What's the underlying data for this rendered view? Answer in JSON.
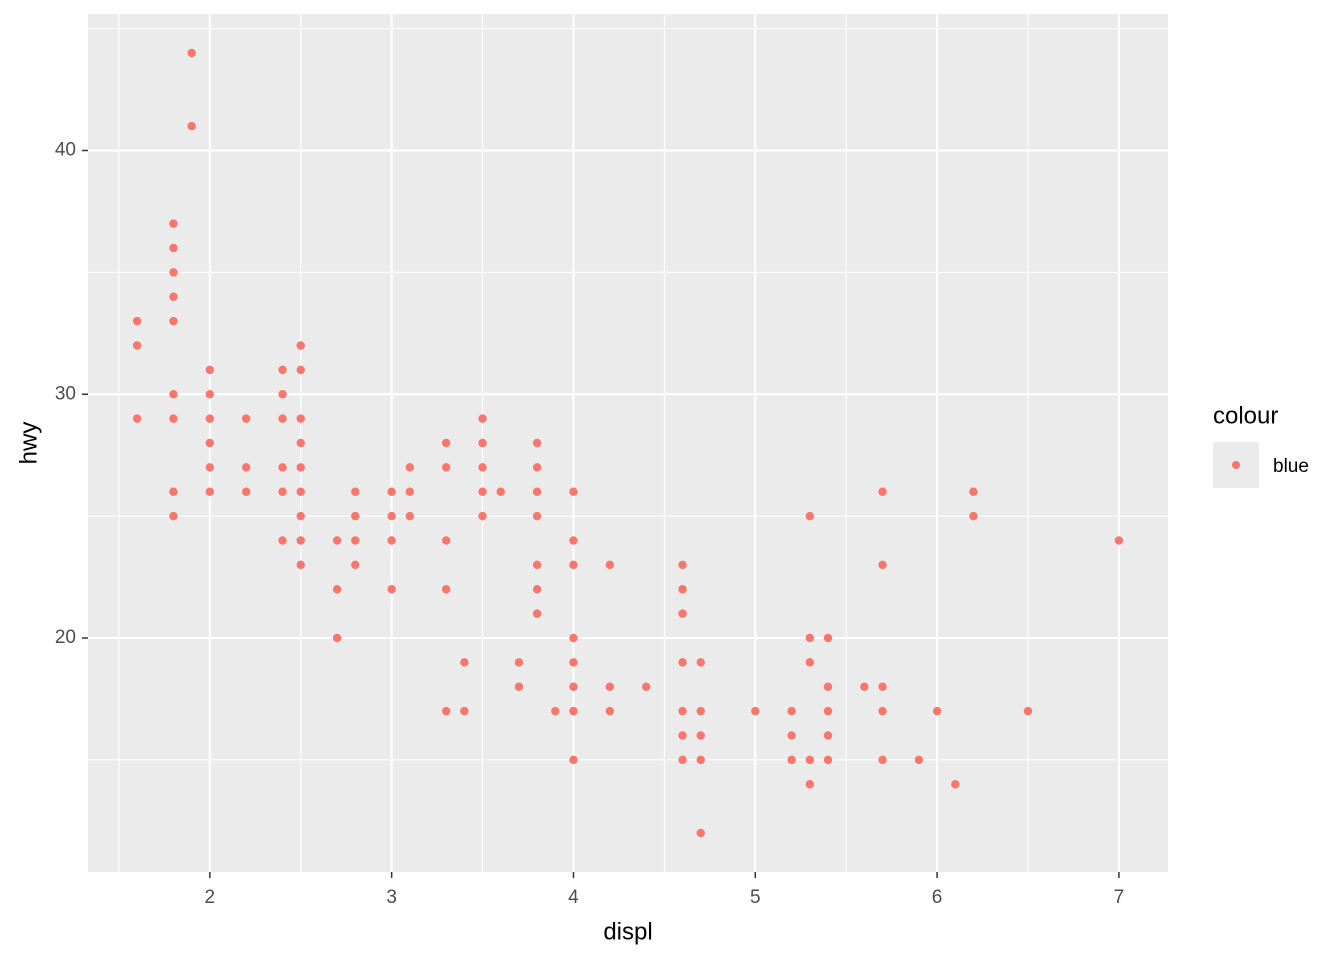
{
  "chart_data": {
    "type": "scatter",
    "x_label": "displ",
    "y_label": "hwy",
    "legend_title": "colour",
    "series": [
      {
        "name": "blue",
        "color": "#F8766D",
        "x": [
          1.6,
          1.6,
          1.6,
          1.8,
          1.8,
          1.8,
          1.8,
          1.8,
          1.8,
          1.8,
          1.8,
          1.8,
          1.9,
          1.9,
          2.0,
          2.0,
          2.0,
          2.0,
          2.0,
          2.0,
          2.2,
          2.2,
          2.2,
          2.4,
          2.4,
          2.4,
          2.4,
          2.4,
          2.4,
          2.5,
          2.5,
          2.5,
          2.5,
          2.5,
          2.5,
          2.5,
          2.5,
          2.5,
          2.7,
          2.7,
          2.7,
          2.8,
          2.8,
          2.8,
          2.8,
          3.0,
          3.0,
          3.0,
          3.0,
          3.1,
          3.1,
          3.1,
          3.3,
          3.3,
          3.3,
          3.3,
          3.3,
          3.4,
          3.4,
          3.5,
          3.5,
          3.5,
          3.5,
          3.5,
          3.6,
          3.7,
          3.7,
          3.8,
          3.8,
          3.8,
          3.8,
          3.8,
          3.8,
          3.8,
          3.9,
          4.0,
          4.0,
          4.0,
          4.0,
          4.0,
          4.0,
          4.0,
          4.0,
          4.2,
          4.2,
          4.2,
          4.4,
          4.6,
          4.6,
          4.6,
          4.6,
          4.6,
          4.6,
          4.6,
          4.7,
          4.7,
          4.7,
          4.7,
          4.7,
          5.0,
          5.2,
          5.2,
          5.2,
          5.3,
          5.3,
          5.3,
          5.3,
          5.3,
          5.4,
          5.4,
          5.4,
          5.4,
          5.4,
          5.6,
          5.7,
          5.7,
          5.7,
          5.7,
          5.7,
          5.9,
          6.0,
          6.1,
          6.2,
          6.2,
          6.5,
          7.0
        ],
        "values": [
          33,
          32,
          29,
          37,
          36,
          35,
          34,
          33,
          30,
          29,
          26,
          25,
          44,
          41,
          31,
          30,
          29,
          28,
          27,
          26,
          29,
          27,
          26,
          31,
          30,
          29,
          27,
          26,
          24,
          32,
          31,
          29,
          28,
          27,
          26,
          25,
          24,
          23,
          24,
          22,
          20,
          26,
          25,
          24,
          23,
          26,
          25,
          24,
          22,
          27,
          26,
          25,
          28,
          27,
          24,
          22,
          17,
          19,
          17,
          29,
          28,
          27,
          26,
          25,
          26,
          19,
          18,
          28,
          27,
          26,
          25,
          23,
          22,
          21,
          17,
          26,
          24,
          23,
          20,
          19,
          18,
          17,
          15,
          23,
          18,
          17,
          18,
          23,
          22,
          21,
          19,
          17,
          16,
          15,
          19,
          17,
          16,
          15,
          12,
          17,
          17,
          16,
          15,
          25,
          20,
          19,
          15,
          14,
          20,
          18,
          17,
          16,
          15,
          18,
          26,
          23,
          18,
          17,
          15,
          15,
          17,
          14,
          26,
          25,
          17,
          24
        ]
      }
    ],
    "xlim": [
      1.33,
      7.27
    ],
    "xticks": [
      2,
      3,
      4,
      5,
      6,
      7
    ],
    "xminorticks": [
      1.5,
      2.5,
      3.5,
      4.5,
      5.5,
      6.5
    ],
    "ylim": [
      10.4,
      45.6
    ],
    "yticks": [
      20,
      30,
      40
    ],
    "yminorticks": [
      15,
      25,
      35,
      45
    ],
    "grid": true
  }
}
